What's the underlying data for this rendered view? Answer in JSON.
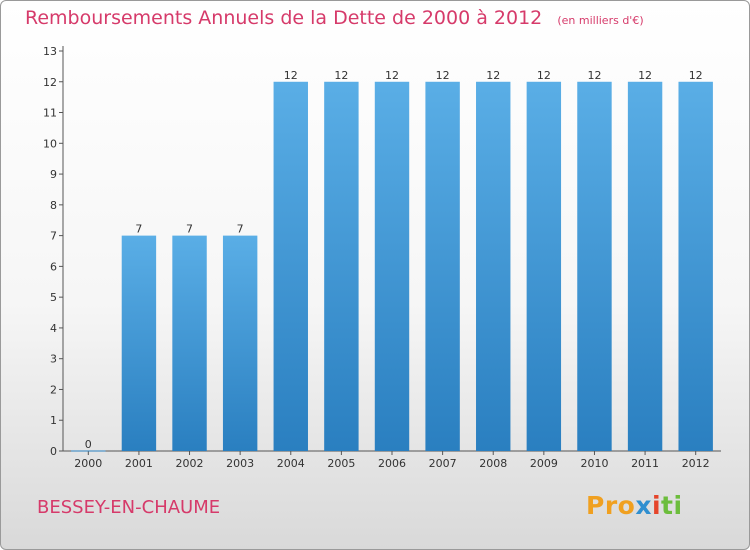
{
  "title": "Remboursements Annuels de la Dette de 2000 à 2012",
  "unit": "(en milliers d'€)",
  "commune": "BESSEY-EN-CHAUME",
  "logo": {
    "part1": "Pro",
    "part2": "x",
    "part3": "i",
    "part4": "ti"
  },
  "colors": {
    "bar_light": "#5aaee6",
    "bar_dark": "#2a7fc0",
    "title": "#d63a6a"
  },
  "chart_data": {
    "type": "bar",
    "categories": [
      "2000",
      "2001",
      "2002",
      "2003",
      "2004",
      "2005",
      "2006",
      "2007",
      "2008",
      "2009",
      "2010",
      "2011",
      "2012"
    ],
    "values": [
      0,
      7,
      7,
      7,
      12,
      12,
      12,
      12,
      12,
      12,
      12,
      12,
      12
    ],
    "data_labels": [
      "0",
      "7",
      "7",
      "7",
      "12",
      "12",
      "12",
      "12",
      "12",
      "12",
      "12",
      "12",
      "12"
    ],
    "yticks": [
      0,
      1,
      2,
      3,
      4,
      5,
      6,
      7,
      8,
      9,
      10,
      11,
      12,
      13
    ],
    "ylim": [
      0,
      13
    ],
    "grid": false,
    "title": "Remboursements Annuels de la Dette de 2000 à 2012",
    "xlabel": "",
    "ylabel": ""
  }
}
